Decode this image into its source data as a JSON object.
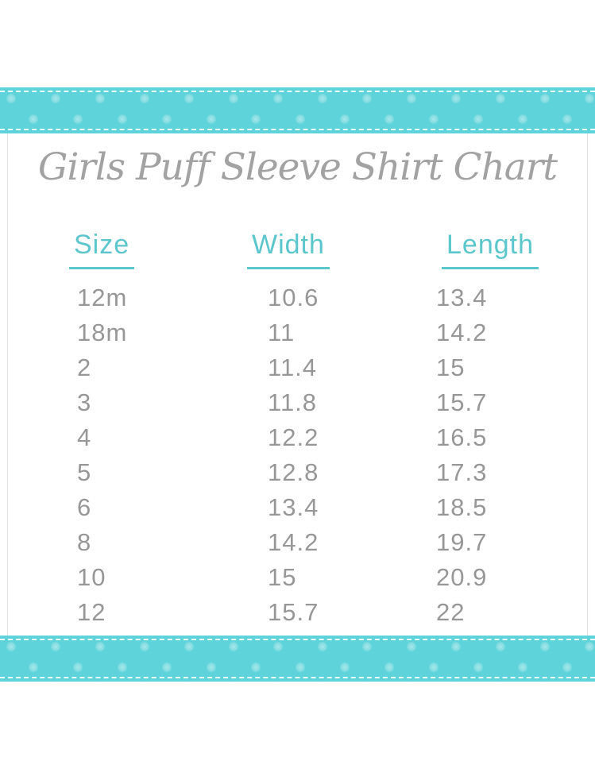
{
  "title": "Girls Puff Sleeve Shirt Chart",
  "colors": {
    "ribbon_teal": "#5ed3d9",
    "ribbon_dot": "#a9e6e9",
    "stitch": "#ffffff",
    "header_teal": "#5cc6cd",
    "title_gray": "#a2a2a2",
    "data_gray": "#979797",
    "panel_border": "#e3e3e3"
  },
  "chart_data": {
    "type": "table",
    "title": "Girls Puff Sleeve Shirt Chart",
    "columns": [
      "Size",
      "Width",
      "Length"
    ],
    "rows": [
      [
        "12m",
        "10.6",
        "13.4"
      ],
      [
        "18m",
        "11",
        "14.2"
      ],
      [
        "2",
        "11.4",
        "15"
      ],
      [
        "3",
        "11.8",
        "15.7"
      ],
      [
        "4",
        "12.2",
        "16.5"
      ],
      [
        "5",
        "12.8",
        "17.3"
      ],
      [
        "6",
        "13.4",
        "18.5"
      ],
      [
        "8",
        "14.2",
        "19.7"
      ],
      [
        "10",
        "15",
        "20.9"
      ],
      [
        "12",
        "15.7",
        "22"
      ]
    ]
  }
}
